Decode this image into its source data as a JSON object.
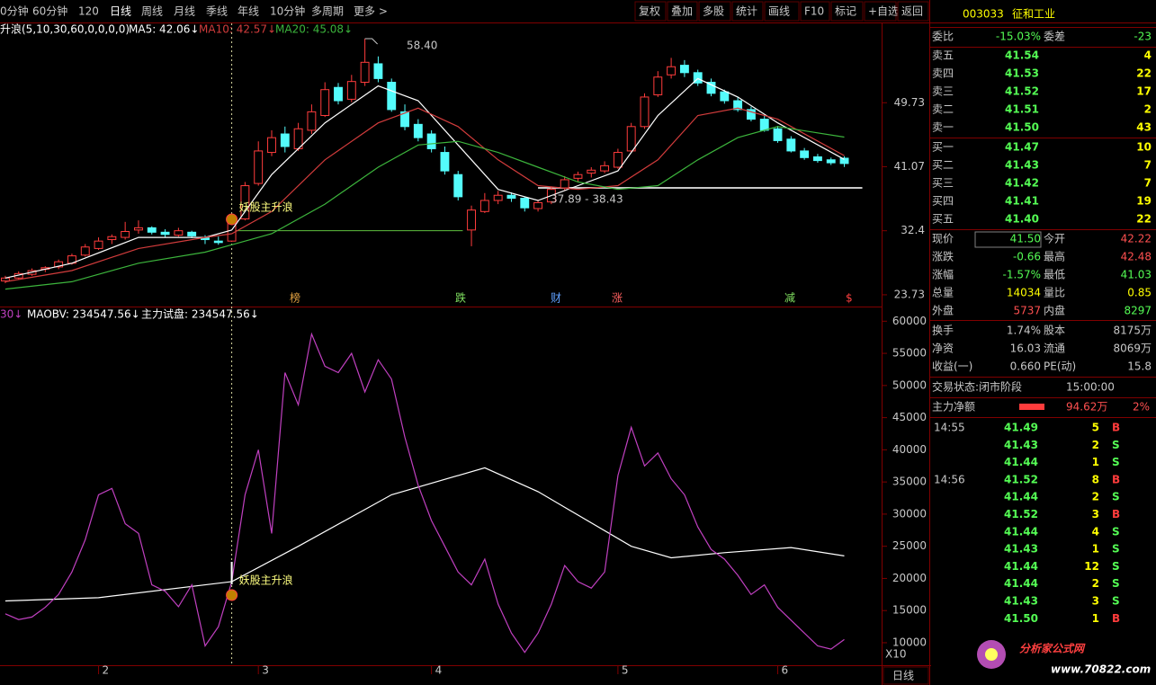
{
  "toolbar": {
    "left": [
      "0分钟",
      "60分钟",
      "120",
      "日线",
      "周线",
      "月线",
      "季线",
      "年线",
      "10分钟",
      "多周期",
      "更多 >"
    ],
    "right": [
      "复权",
      "叠加",
      "多股",
      "统计",
      "画线",
      "F10",
      "标记",
      "+自选",
      "返回"
    ]
  },
  "chart_data": [
    {
      "type": "candlestick",
      "header": [
        "升浪(5,10,30,60,0,0,0,0)",
        "MA5: 42.06↓",
        "MA10: 42.57↓",
        "MA20: 45.08↓"
      ],
      "xlim": [
        -0.4,
        65.8
      ],
      "ylim": [
        22.26,
        60.47
      ],
      "yticks": [
        23.73,
        32.4,
        41.07,
        49.73
      ],
      "candles": [
        [
          25.6,
          26.3,
          25.3,
          26.0
        ],
        [
          26.0,
          26.9,
          25.8,
          26.6
        ],
        [
          26.5,
          27.3,
          26.3,
          27.0
        ],
        [
          27.2,
          27.6,
          26.8,
          27.4
        ],
        [
          27.5,
          28.5,
          27.2,
          28.2
        ],
        [
          28.0,
          29.3,
          27.8,
          29.0
        ],
        [
          29.1,
          30.6,
          28.9,
          30.2
        ],
        [
          30.0,
          31.5,
          29.8,
          31.0
        ],
        [
          31.2,
          31.9,
          30.6,
          31.6
        ],
        [
          31.5,
          33.6,
          31.2,
          32.3
        ],
        [
          32.5,
          33.8,
          32.0,
          32.8
        ],
        [
          32.8,
          33.0,
          31.9,
          32.2
        ],
        [
          32.2,
          32.6,
          31.5,
          31.9
        ],
        [
          31.8,
          32.8,
          31.6,
          32.4
        ],
        [
          32.2,
          32.4,
          31.4,
          31.7
        ],
        [
          31.5,
          31.8,
          30.6,
          31.2
        ],
        [
          31.0,
          31.6,
          30.5,
          30.8
        ],
        [
          31.0,
          33.9,
          30.9,
          33.6
        ],
        [
          34.0,
          39.0,
          33.8,
          38.5
        ],
        [
          38.8,
          44.5,
          38.5,
          43.2
        ],
        [
          43.0,
          46.0,
          42.5,
          45.0
        ],
        [
          45.5,
          46.5,
          43.0,
          43.8
        ],
        [
          43.5,
          47.0,
          43.2,
          46.2
        ],
        [
          46.0,
          49.5,
          45.5,
          48.5
        ],
        [
          48.0,
          52.5,
          47.8,
          51.5
        ],
        [
          51.8,
          52.4,
          49.5,
          50.0
        ],
        [
          50.2,
          53.5,
          49.8,
          52.6
        ],
        [
          52.5,
          58.4,
          52.0,
          55.2
        ],
        [
          55.0,
          56.0,
          52.5,
          53.0
        ],
        [
          52.5,
          53.0,
          48.5,
          48.8
        ],
        [
          48.5,
          49.5,
          46.0,
          46.5
        ],
        [
          46.8,
          47.5,
          44.5,
          45.0
        ],
        [
          45.5,
          46.0,
          43.0,
          43.5
        ],
        [
          43.0,
          43.8,
          40.0,
          40.5
        ],
        [
          40.0,
          40.5,
          36.5,
          37.0
        ],
        [
          32.5,
          35.8,
          30.3,
          35.2
        ],
        [
          35.0,
          37.5,
          34.8,
          36.5
        ],
        [
          36.5,
          37.8,
          36.0,
          37.2
        ],
        [
          37.2,
          37.6,
          36.3,
          36.8
        ],
        [
          36.8,
          37.0,
          35.0,
          35.5
        ],
        [
          35.4,
          36.6,
          35.0,
          36.2
        ],
        [
          36.3,
          38.4,
          36.0,
          38.0
        ],
        [
          38.2,
          39.8,
          37.8,
          39.3
        ],
        [
          39.5,
          40.4,
          39.0,
          40.0
        ],
        [
          40.2,
          41.0,
          39.6,
          40.6
        ],
        [
          40.5,
          41.8,
          40.2,
          41.2
        ],
        [
          41.0,
          43.5,
          40.8,
          43.0
        ],
        [
          43.2,
          47.0,
          43.0,
          46.5
        ],
        [
          46.5,
          51.0,
          46.2,
          50.5
        ],
        [
          50.8,
          54.0,
          50.5,
          53.2
        ],
        [
          53.5,
          55.8,
          53.0,
          54.6
        ],
        [
          54.8,
          55.5,
          53.2,
          53.8
        ],
        [
          53.8,
          54.2,
          52.0,
          52.4
        ],
        [
          52.5,
          53.0,
          50.6,
          51.0
        ],
        [
          51.2,
          51.5,
          49.6,
          50.0
        ],
        [
          50.0,
          50.5,
          48.5,
          48.8
        ],
        [
          48.8,
          49.2,
          47.2,
          47.5
        ],
        [
          47.5,
          48.0,
          45.8,
          46.0
        ],
        [
          46.2,
          46.6,
          44.3,
          44.6
        ],
        [
          44.8,
          45.2,
          43.0,
          43.2
        ],
        [
          43.2,
          43.6,
          42.0,
          42.3
        ],
        [
          42.4,
          42.8,
          41.6,
          41.9
        ],
        [
          42.0,
          42.3,
          41.3,
          41.6
        ],
        [
          42.22,
          42.48,
          41.03,
          41.5
        ]
      ],
      "series": [
        {
          "color": "#ffffff",
          "x": [
            0,
            5,
            10,
            15,
            17,
            20,
            24,
            28,
            31,
            34,
            37,
            40,
            43,
            46,
            49,
            52,
            55,
            58,
            63
          ],
          "values": [
            26,
            28,
            31.5,
            31.5,
            32.5,
            40,
            47,
            52,
            50,
            44,
            38,
            36.5,
            38.5,
            40.5,
            48,
            53,
            50.5,
            47,
            42.06
          ]
        },
        {
          "color": "#d23c3c",
          "x": [
            0,
            5,
            10,
            15,
            17,
            20,
            24,
            28,
            31,
            34,
            37,
            40,
            43,
            46,
            49,
            52,
            55,
            58,
            63
          ],
          "values": [
            25.5,
            27,
            30,
            31.5,
            32,
            35,
            42,
            47,
            49,
            46.5,
            42,
            38.5,
            38,
            38.5,
            42,
            48,
            49,
            47.5,
            42.57
          ]
        },
        {
          "color": "#3cb43c",
          "x": [
            0,
            5,
            10,
            15,
            17,
            20,
            24,
            28,
            31,
            34,
            37,
            40,
            43,
            46,
            49,
            52,
            55,
            58,
            63
          ],
          "values": [
            24.5,
            25.5,
            28,
            29.5,
            30.5,
            32,
            36,
            41,
            44,
            44.5,
            43,
            41,
            39,
            38,
            38.5,
            42,
            45,
            46.5,
            45.08
          ]
        }
      ],
      "levels": [
        {
          "value": 32.4,
          "from": 17,
          "to": 33,
          "color": "#5fbf3f"
        },
        {
          "value": 38.2,
          "from": 40,
          "to": 63,
          "color": "#c8c8c8"
        }
      ],
      "annotations": [
        "58.40",
        "37.89 - 38.43",
        "妖股主升浪"
      ],
      "signal_index": 17,
      "signals": [
        "榜",
        "跌",
        "财",
        "涨",
        "减",
        "$"
      ]
    },
    {
      "type": "line",
      "header": [
        "30↓",
        "MAOBV: 234547.56↓",
        "主力试盘: 234547.56↓"
      ],
      "xlim": [
        -0.4,
        65.8
      ],
      "ylim": [
        6500,
        62000
      ],
      "yticks": [
        10000,
        15000,
        20000,
        25000,
        30000,
        35000,
        40000,
        45000,
        50000,
        55000,
        60000
      ],
      "series": [
        {
          "color": "#ffffff",
          "x": [
            0,
            7,
            17,
            22,
            29,
            36,
            40,
            47,
            50,
            54,
            59,
            63
          ],
          "values": [
            16500,
            17000,
            19500,
            25000,
            33000,
            37200,
            33500,
            25000,
            23200,
            24000,
            24800,
            23500
          ]
        },
        {
          "color": "#c040c0",
          "values": [
            14500,
            13600,
            14000,
            15500,
            17500,
            21000,
            26000,
            33000,
            34000,
            28500,
            27000,
            19000,
            18000,
            15600,
            19000,
            9500,
            12500,
            19500,
            33000,
            40000,
            27000,
            52000,
            47000,
            58000,
            53000,
            52000,
            55000,
            49000,
            54000,
            51000,
            42000,
            34500,
            29000,
            25000,
            21000,
            19000,
            23000,
            16000,
            11500,
            8500,
            11500,
            16000,
            22000,
            19500,
            18500,
            21000,
            36000,
            43500,
            37500,
            39500,
            35500,
            33000,
            28000,
            24500,
            23000,
            20500,
            17500,
            19000,
            15500,
            13500,
            11500,
            9500,
            9000,
            10500
          ]
        }
      ],
      "annotation": "妖股主升浪",
      "corner": "X10",
      "xticks": [
        {
          "value": 7,
          "label": "2"
        },
        {
          "value": 19,
          "label": "3"
        },
        {
          "value": 32,
          "label": "4"
        },
        {
          "value": 46,
          "label": "5"
        },
        {
          "value": 58,
          "label": "6"
        }
      ],
      "period": "日线"
    }
  ],
  "quote": {
    "code": "003033",
    "name": "征和工业",
    "ratio": [
      "委比",
      "-15.03%",
      "委差",
      "-23"
    ],
    "asks": [
      [
        "卖五",
        "41.54",
        "4"
      ],
      [
        "卖四",
        "41.53",
        "22"
      ],
      [
        "卖三",
        "41.52",
        "17"
      ],
      [
        "卖二",
        "41.51",
        "2"
      ],
      [
        "卖一",
        "41.50",
        "43"
      ]
    ],
    "bids": [
      [
        "买一",
        "41.47",
        "10"
      ],
      [
        "买二",
        "41.43",
        "7"
      ],
      [
        "买三",
        "41.42",
        "7"
      ],
      [
        "买四",
        "41.41",
        "19"
      ],
      [
        "买五",
        "41.40",
        "22"
      ]
    ],
    "stats": [
      [
        "现价",
        "41.50",
        "今开",
        "42.22"
      ],
      [
        "涨跌",
        "-0.66",
        "最高",
        "42.48"
      ],
      [
        "涨幅",
        "-1.57%",
        "最低",
        "41.03"
      ],
      [
        "总量",
        "14034",
        "量比",
        "0.85"
      ],
      [
        "外盘",
        "5737",
        "内盘",
        "8297"
      ]
    ],
    "finance": [
      [
        "换手",
        "1.74%",
        "股本",
        "8175万"
      ],
      [
        "净资",
        "16.03",
        "流通",
        "8069万"
      ],
      [
        "收益(一)",
        "0.660",
        "PE(动)",
        "15.8"
      ]
    ],
    "status": [
      "交易状态:闭市阶段",
      "15:00:00"
    ],
    "main_flow": [
      "主力净额",
      "94.62万",
      "2%"
    ],
    "trades": [
      [
        "14:55",
        "41.49",
        "5",
        "B"
      ],
      [
        "",
        "41.43",
        "2",
        "S"
      ],
      [
        "",
        "41.44",
        "1",
        "S"
      ],
      [
        "14:56",
        "41.52",
        "8",
        "B"
      ],
      [
        "",
        "41.44",
        "2",
        "S"
      ],
      [
        "",
        "41.52",
        "3",
        "B"
      ],
      [
        "",
        "41.44",
        "4",
        "S"
      ],
      [
        "",
        "41.43",
        "1",
        "S"
      ],
      [
        "",
        "41.44",
        "12",
        "S"
      ],
      [
        "",
        "41.44",
        "2",
        "S"
      ],
      [
        "",
        "41.43",
        "3",
        "S"
      ],
      [
        "",
        "41.50",
        "1",
        "B"
      ]
    ]
  },
  "watermark": [
    "分析家公式网",
    "www.70822.com"
  ]
}
